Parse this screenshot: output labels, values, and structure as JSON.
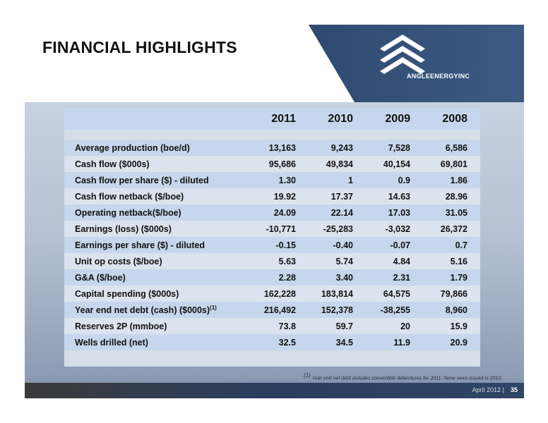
{
  "slide": {
    "title": "FINANCIAL HIGHLIGHTS",
    "logo_text": "ANGLEENERGYINC",
    "footer": {
      "date": "April 2012 |",
      "page": "35"
    },
    "footnote": {
      "marker": "(1)",
      "text": "Year end net debt includes convertible debentures for 2011. None were issued in 2010."
    }
  },
  "table": {
    "columns": [
      "2011",
      "2010",
      "2009",
      "2008"
    ],
    "rows": [
      {
        "label": "Average production (boe/d)",
        "values": [
          "13,163",
          "9,243",
          "7,528",
          "6,586"
        ]
      },
      {
        "label": "Cash flow ($000s)",
        "values": [
          "95,686",
          "49,834",
          "40,154",
          "69,801"
        ]
      },
      {
        "label": "Cash flow per share ($) - diluted",
        "values": [
          "1.30",
          "1",
          "0.9",
          "1.86"
        ]
      },
      {
        "label": "Cash flow netback ($/boe)",
        "values": [
          "19.92",
          "17.37",
          "14.63",
          "28.96"
        ]
      },
      {
        "label": "Operating netback($/boe)",
        "values": [
          "24.09",
          "22.14",
          "17.03",
          "31.05"
        ]
      },
      {
        "label": "Earnings (loss) ($000s)",
        "values": [
          "-10,771",
          "-25,283",
          "-3,032",
          "26,372"
        ]
      },
      {
        "label": "Earnings per share ($) - diluted",
        "values": [
          "-0.15",
          "-0.40",
          "-0.07",
          "0.7"
        ]
      },
      {
        "label": "Unit op costs ($/boe)",
        "values": [
          "5.63",
          "5.74",
          "4.84",
          "5.16"
        ]
      },
      {
        "label": "G&A ($/boe)",
        "values": [
          "2.28",
          "3.40",
          "2.31",
          "1.79"
        ]
      },
      {
        "label": "Capital spending ($000s)",
        "values": [
          "162,228",
          "183,814",
          "64,575",
          "79,866"
        ]
      },
      {
        "label": "Year end net debt (cash) ($000s)",
        "superscript": "(1)",
        "values": [
          "216,492",
          "152,378",
          "-38,255",
          "8,960"
        ]
      },
      {
        "label": "Reserves 2P (mmboe)",
        "values": [
          "73.8",
          "59.7",
          "20",
          "15.9"
        ]
      },
      {
        "label": "Wells drilled (net)",
        "values": [
          "32.5",
          "34.5",
          "11.9",
          "20.9"
        ]
      }
    ]
  },
  "colors": {
    "banner": "#39557a",
    "row_light": "#dbe3ee",
    "row_dark": "#c7d6ec",
    "footer": "#2c3d5c"
  }
}
